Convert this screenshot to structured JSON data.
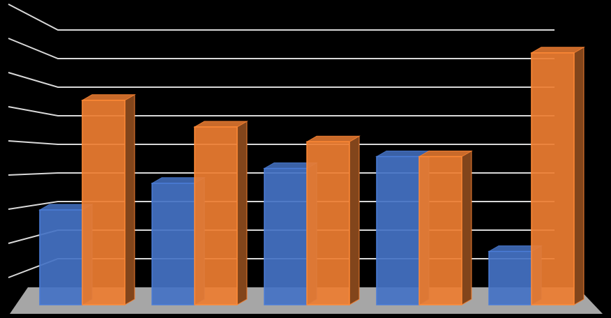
{
  "chart_data": {
    "type": "bar3d",
    "categories": [
      null,
      null,
      null,
      null,
      null
    ],
    "series": [
      {
        "color": "#4472c4",
        "values": [
          3.2,
          4.1,
          4.6,
          5.0,
          1.8
        ]
      },
      {
        "color": "#ed7d31",
        "values": [
          6.9,
          6.0,
          5.5,
          5.0,
          8.5
        ]
      }
    ],
    "ylim": [
      0,
      9
    ],
    "yticks": [
      1,
      2,
      3,
      4,
      5,
      6,
      7,
      8,
      9
    ],
    "grid": true
  }
}
